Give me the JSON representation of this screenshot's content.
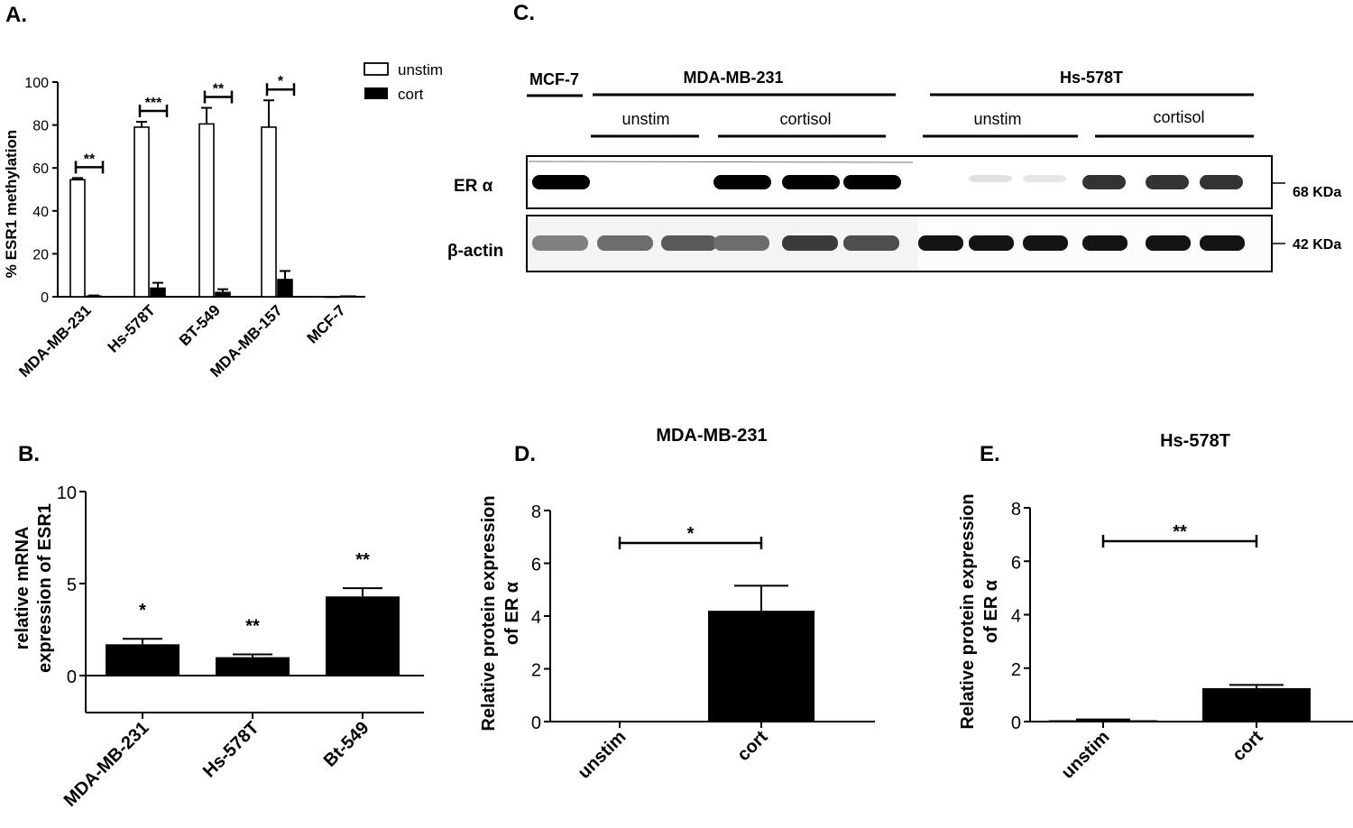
{
  "panels": {
    "A": {
      "letter": "A.",
      "chart_data": {
        "type": "bar",
        "title": "",
        "xlabel": "",
        "ylabel": "% ESR1 methylation",
        "ylim": [
          0,
          100
        ],
        "yticks": [
          "0",
          "20",
          "40",
          "60",
          "80",
          "100"
        ],
        "categories": [
          "MDA-MB-231",
          "Hs-578T",
          "BT-549",
          "MDA-MB-157",
          "MCF-7"
        ],
        "series": [
          {
            "name": "unstim",
            "values": [
              54.5,
              79,
              80.5,
              79,
              0
            ],
            "errors": [
              0.8,
              2.5,
              7.5,
              12.5,
              0
            ],
            "color": "#ffffff"
          },
          {
            "name": "cort",
            "values": [
              0.3,
              4,
              2,
              8,
              0.3
            ],
            "errors": [
              0.3,
              2.5,
              1.5,
              4,
              0
            ],
            "color": "#000000"
          }
        ],
        "significance": [
          "**",
          "***",
          "**",
          "*",
          ""
        ],
        "legend_position": "top-right",
        "grid": false
      }
    },
    "B": {
      "letter": "B.",
      "chart_data": {
        "type": "bar",
        "title": "",
        "xlabel": "",
        "ylabel": [
          "relative mRNA",
          "expression of ESR1"
        ],
        "ylim": [
          -2,
          10
        ],
        "yticks": [
          "0",
          "5",
          "10"
        ],
        "categories": [
          "MDA-MB-231",
          "Hs-578T",
          "Bt-549"
        ],
        "values": [
          1.7,
          1.0,
          4.3
        ],
        "errors": [
          0.3,
          0.15,
          0.45
        ],
        "significance": [
          "*",
          "**",
          "**"
        ],
        "color": "#000000",
        "grid": false
      }
    },
    "C": {
      "letter": "C.",
      "headers": {
        "mcf7": "MCF-7",
        "mda": "MDA-MB-231",
        "hs": "Hs-578T",
        "mda_unstim": "unstim",
        "mda_cortisol": "cortisol",
        "hs_unstim": "unstim",
        "hs_cortisol": "cortisol"
      },
      "rows": {
        "era_label": "ER α",
        "actin_label": "β-actin",
        "era_size": "68 KDa",
        "actin_size": "42 KDa"
      },
      "lanes": {
        "era_intensity": [
          1.0,
          0,
          0,
          1.0,
          1.0,
          1.0,
          0,
          0.12,
          0.1,
          0.8,
          0.8,
          0.8
        ],
        "actin_intensity": [
          0.45,
          0.55,
          0.65,
          0.55,
          0.8,
          0.7,
          1.0,
          1.0,
          1.0,
          1.0,
          1.0,
          1.0
        ]
      }
    },
    "D": {
      "letter": "D.",
      "chart_data": {
        "type": "bar",
        "title": "MDA-MB-231",
        "xlabel": "",
        "ylabel": [
          "Relative protein expression",
          "of ER α"
        ],
        "ylim": [
          0,
          8
        ],
        "yticks": [
          "0",
          "2",
          "4",
          "6",
          "8"
        ],
        "categories": [
          "unstim",
          "cort"
        ],
        "values": [
          0,
          4.2
        ],
        "errors": [
          0,
          0.95
        ],
        "significance": "*",
        "color": "#000000",
        "grid": false
      }
    },
    "E": {
      "letter": "E.",
      "chart_data": {
        "type": "bar",
        "title": "Hs-578T",
        "xlabel": "",
        "ylabel": [
          "Relative protein expression",
          "of ER α"
        ],
        "ylim": [
          0,
          8
        ],
        "yticks": [
          "0",
          "2",
          "4",
          "6",
          "8"
        ],
        "categories": [
          "unstim",
          "cort"
        ],
        "values": [
          0.05,
          1.25
        ],
        "errors": [
          0.03,
          0.12
        ],
        "significance": "**",
        "color": "#000000",
        "grid": false
      }
    }
  }
}
